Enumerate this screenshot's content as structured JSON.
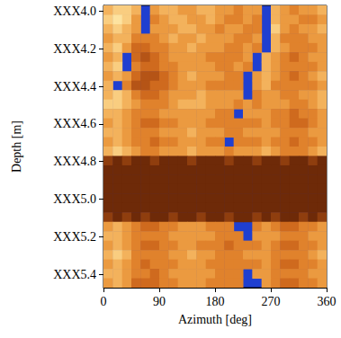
{
  "chart_data": {
    "type": "heatmap",
    "xlabel": "Azimuth [deg]",
    "ylabel": "Depth [m]",
    "xlim": [
      0,
      360
    ],
    "xticks": [
      0,
      90,
      180,
      270,
      360
    ],
    "ylim": [
      3.97,
      5.47
    ],
    "yticks": [
      {
        "value": 4.0,
        "label": "XXX4.0"
      },
      {
        "value": 4.2,
        "label": "XXX4.2"
      },
      {
        "value": 4.4,
        "label": "XXX4.4"
      },
      {
        "value": 4.6,
        "label": "XXX4.6"
      },
      {
        "value": 4.8,
        "label": "XXX4.8"
      },
      {
        "value": 5.0,
        "label": "XXX5.0"
      },
      {
        "value": 5.2,
        "label": "XXX5.2"
      },
      {
        "value": 5.4,
        "label": "XXX5.4"
      }
    ],
    "azimuth_edges": [
      0,
      15,
      30,
      45,
      60,
      75,
      90,
      105,
      120,
      135,
      150,
      165,
      180,
      195,
      210,
      225,
      240,
      255,
      270,
      285,
      300,
      315,
      330,
      345,
      360
    ],
    "depth_edges": [
      3.97,
      4.02,
      4.07,
      4.12,
      4.17,
      4.22,
      4.27,
      4.32,
      4.37,
      4.42,
      4.47,
      4.52,
      4.57,
      4.62,
      4.67,
      4.72,
      4.77,
      4.82,
      4.87,
      4.92,
      4.97,
      5.02,
      5.07,
      5.12,
      5.17,
      5.22,
      5.27,
      5.32,
      5.37,
      5.42,
      5.47
    ],
    "zlim": [
      0,
      9
    ],
    "z": [
      [
        3,
        2,
        2,
        3,
        null,
        4,
        3,
        3,
        4,
        4,
        3,
        3,
        4,
        4,
        5,
        4,
        4,
        null,
        3,
        4,
        5,
        4,
        4,
        3
      ],
      [
        2,
        1,
        2,
        4,
        null,
        5,
        4,
        3,
        3,
        4,
        4,
        3,
        4,
        5,
        5,
        4,
        5,
        null,
        3,
        4,
        4,
        5,
        5,
        4
      ],
      [
        3,
        2,
        3,
        4,
        null,
        4,
        4,
        4,
        3,
        3,
        4,
        4,
        5,
        4,
        4,
        5,
        5,
        null,
        2,
        4,
        5,
        4,
        4,
        3
      ],
      [
        4,
        3,
        3,
        5,
        5,
        5,
        4,
        3,
        4,
        4,
        3,
        4,
        4,
        4,
        5,
        5,
        4,
        null,
        3,
        5,
        5,
        5,
        4,
        4
      ],
      [
        3,
        2,
        4,
        6,
        6,
        5,
        5,
        4,
        4,
        3,
        4,
        4,
        4,
        5,
        5,
        4,
        5,
        null,
        3,
        4,
        5,
        5,
        5,
        4
      ],
      [
        4,
        3,
        null,
        6,
        7,
        6,
        5,
        4,
        4,
        4,
        4,
        5,
        5,
        5,
        5,
        4,
        null,
        3,
        4,
        5,
        6,
        5,
        4,
        4
      ],
      [
        3,
        2,
        null,
        5,
        6,
        6,
        5,
        5,
        4,
        4,
        4,
        4,
        5,
        5,
        4,
        5,
        null,
        3,
        4,
        5,
        5,
        5,
        5,
        4
      ],
      [
        4,
        3,
        4,
        6,
        7,
        7,
        6,
        5,
        4,
        3,
        4,
        4,
        4,
        5,
        5,
        null,
        4,
        3,
        4,
        5,
        6,
        5,
        4,
        3
      ],
      [
        3,
        null,
        5,
        7,
        7,
        6,
        6,
        5,
        4,
        4,
        4,
        5,
        5,
        5,
        5,
        null,
        4,
        3,
        5,
        5,
        5,
        5,
        5,
        4
      ],
      [
        3,
        2,
        3,
        5,
        6,
        6,
        5,
        4,
        4,
        4,
        3,
        4,
        4,
        4,
        4,
        null,
        5,
        4,
        4,
        5,
        5,
        4,
        4,
        3
      ],
      [
        2,
        2,
        3,
        4,
        5,
        5,
        5,
        4,
        3,
        3,
        3,
        4,
        4,
        4,
        5,
        4,
        5,
        4,
        4,
        4,
        5,
        5,
        4,
        3
      ],
      [
        3,
        3,
        4,
        5,
        5,
        5,
        4,
        4,
        4,
        4,
        4,
        4,
        5,
        5,
        null,
        4,
        4,
        4,
        5,
        5,
        6,
        5,
        5,
        4
      ],
      [
        4,
        3,
        4,
        5,
        6,
        6,
        5,
        5,
        4,
        4,
        4,
        5,
        5,
        5,
        5,
        5,
        5,
        4,
        5,
        5,
        6,
        6,
        5,
        4
      ],
      [
        3,
        3,
        4,
        5,
        5,
        5,
        4,
        4,
        4,
        3,
        4,
        4,
        4,
        5,
        5,
        4,
        4,
        4,
        4,
        5,
        5,
        5,
        4,
        4
      ],
      [
        4,
        3,
        4,
        5,
        5,
        6,
        5,
        5,
        4,
        4,
        4,
        5,
        5,
        null,
        5,
        5,
        5,
        4,
        5,
        5,
        6,
        5,
        5,
        4
      ],
      [
        3,
        2,
        3,
        4,
        5,
        5,
        4,
        4,
        4,
        3,
        4,
        4,
        4,
        5,
        4,
        4,
        4,
        3,
        4,
        5,
        5,
        5,
        4,
        3
      ],
      [
        8,
        9,
        8,
        9,
        9,
        8,
        9,
        9,
        9,
        8,
        9,
        9,
        9,
        8,
        9,
        9,
        8,
        9,
        9,
        8,
        9,
        9,
        8,
        9
      ],
      [
        9,
        9,
        9,
        9,
        9,
        9,
        9,
        9,
        9,
        9,
        9,
        9,
        9,
        9,
        9,
        9,
        9,
        9,
        9,
        9,
        9,
        9,
        9,
        9
      ],
      [
        9,
        9,
        9,
        9,
        9,
        9,
        9,
        9,
        9,
        9,
        9,
        9,
        9,
        9,
        9,
        9,
        9,
        9,
        9,
        9,
        9,
        9,
        9,
        9
      ],
      [
        9,
        9,
        9,
        9,
        9,
        9,
        9,
        9,
        9,
        9,
        9,
        9,
        9,
        9,
        9,
        9,
        9,
        9,
        9,
        9,
        9,
        9,
        9,
        9
      ],
      [
        9,
        9,
        9,
        9,
        9,
        9,
        9,
        9,
        9,
        9,
        9,
        9,
        9,
        9,
        9,
        9,
        9,
        9,
        9,
        9,
        9,
        9,
        9,
        9
      ],
      [
        9,
        9,
        9,
        9,
        9,
        9,
        9,
        9,
        9,
        9,
        9,
        9,
        9,
        9,
        9,
        9,
        9,
        9,
        9,
        9,
        9,
        9,
        9,
        9
      ],
      [
        8,
        9,
        8,
        9,
        8,
        9,
        9,
        8,
        9,
        9,
        8,
        9,
        9,
        8,
        9,
        9,
        8,
        9,
        8,
        9,
        9,
        8,
        9,
        8
      ],
      [
        4,
        3,
        4,
        5,
        6,
        6,
        5,
        5,
        4,
        4,
        4,
        5,
        5,
        5,
        null,
        null,
        5,
        4,
        5,
        6,
        6,
        5,
        5,
        4
      ],
      [
        3,
        3,
        4,
        5,
        5,
        5,
        5,
        4,
        4,
        4,
        4,
        4,
        5,
        5,
        5,
        null,
        4,
        4,
        4,
        5,
        5,
        5,
        4,
        4
      ],
      [
        4,
        3,
        4,
        5,
        6,
        6,
        5,
        5,
        4,
        4,
        5,
        5,
        5,
        6,
        5,
        5,
        5,
        4,
        5,
        6,
        6,
        5,
        5,
        4
      ],
      [
        3,
        2,
        3,
        5,
        5,
        5,
        5,
        4,
        4,
        3,
        4,
        4,
        5,
        5,
        5,
        4,
        4,
        4,
        5,
        5,
        5,
        5,
        4,
        3
      ],
      [
        4,
        3,
        4,
        5,
        6,
        5,
        5,
        5,
        4,
        4,
        4,
        5,
        5,
        5,
        5,
        5,
        5,
        4,
        5,
        6,
        6,
        5,
        5,
        4
      ],
      [
        3,
        3,
        4,
        5,
        5,
        6,
        5,
        4,
        4,
        4,
        4,
        4,
        5,
        5,
        5,
        null,
        4,
        4,
        5,
        5,
        5,
        5,
        4,
        4
      ],
      [
        4,
        3,
        4,
        6,
        6,
        6,
        5,
        5,
        4,
        4,
        4,
        5,
        5,
        5,
        5,
        null,
        null,
        4,
        5,
        6,
        6,
        5,
        5,
        4
      ]
    ]
  }
}
